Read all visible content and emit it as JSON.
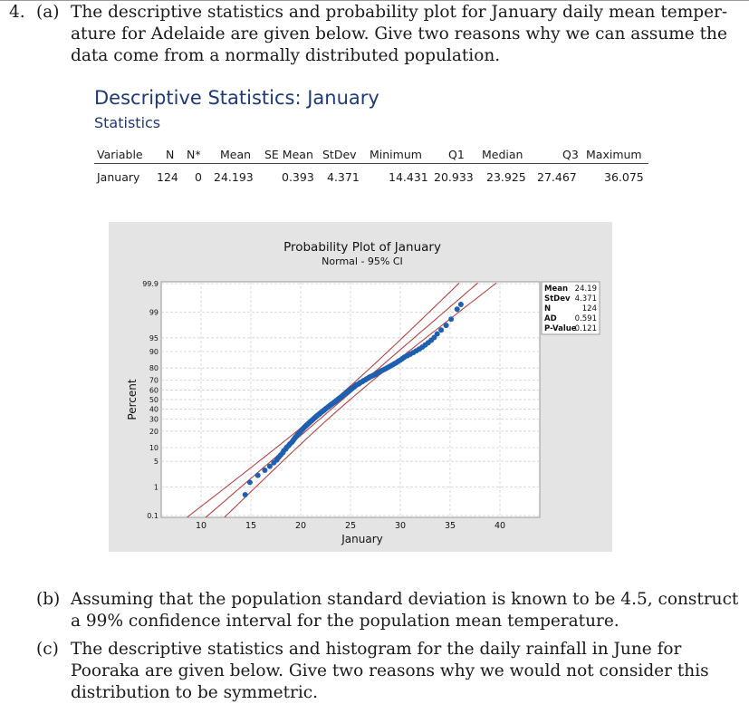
{
  "question_a": {
    "number": "4.",
    "part": "(a)",
    "lines": [
      "The descriptive statistics and probability plot for January daily mean temper-",
      "ature for Adelaide are given below. Give two reasons why we can assume the",
      "data come from a normally distributed population."
    ]
  },
  "stats": {
    "title": "Descriptive Statistics: January",
    "subtitle": "Statistics",
    "headers": [
      "Variable",
      "N",
      "N*",
      "Mean",
      "SE Mean",
      "StDev",
      "Minimum",
      "Q1",
      "Median",
      "Q3",
      "Maximum"
    ],
    "row": [
      "January",
      "124",
      "0",
      "24.193",
      "0.393",
      "4.371",
      "14.431",
      "20.933",
      "23.925",
      "27.467",
      "36.075"
    ]
  },
  "chart_data": {
    "type": "scatter",
    "title": "Probability Plot of January",
    "subtitle": "Normal - 95% CI",
    "xlabel": "January",
    "ylabel": "Percent",
    "xlim": [
      6,
      44
    ],
    "x_ticks": [
      10,
      15,
      20,
      25,
      30,
      35,
      40
    ],
    "y_ticks": [
      0.1,
      1,
      5,
      10,
      20,
      30,
      40,
      50,
      60,
      70,
      80,
      90,
      95,
      99,
      99.9
    ],
    "y_tick_labels": [
      "0.1",
      "1",
      "5",
      "10",
      "20",
      "30",
      "40",
      "50",
      "60",
      "70",
      "80",
      "90",
      "95",
      "99",
      "99.9"
    ],
    "ylim_percent": [
      0.1,
      99.9
    ],
    "scale": "normal probability",
    "grid": true,
    "fit_line": {
      "mean": 24.193,
      "stdev": 4.371
    },
    "ci_level": 0.95,
    "n": 124,
    "legend_position": "top-right",
    "legend": [
      {
        "label": "Mean",
        "value": "24.19"
      },
      {
        "label": "StDev",
        "value": "4.371"
      },
      {
        "label": "N",
        "value": "124"
      },
      {
        "label": "AD",
        "value": "0.591"
      },
      {
        "label": "P-Value",
        "value": "0.121"
      }
    ],
    "points": [
      [
        14.43,
        0.56
      ],
      [
        14.9,
        1.36
      ],
      [
        15.7,
        2.17
      ],
      [
        16.4,
        2.98
      ],
      [
        16.9,
        3.78
      ],
      [
        17.3,
        4.59
      ],
      [
        17.6,
        5.39
      ],
      [
        17.8,
        6.2
      ],
      [
        18.0,
        7.0
      ],
      [
        18.2,
        7.8
      ],
      [
        18.3,
        8.6
      ],
      [
        18.5,
        9.4
      ],
      [
        18.6,
        10.2
      ],
      [
        18.8,
        11.0
      ],
      [
        18.9,
        11.8
      ],
      [
        19.1,
        12.7
      ],
      [
        19.2,
        13.5
      ],
      [
        19.3,
        14.3
      ],
      [
        19.4,
        15.1
      ],
      [
        19.5,
        15.9
      ],
      [
        19.6,
        16.7
      ],
      [
        19.7,
        17.5
      ],
      [
        19.8,
        18.3
      ],
      [
        19.9,
        19.1
      ],
      [
        20.0,
        19.9
      ],
      [
        20.1,
        20.7
      ],
      [
        20.2,
        21.5
      ],
      [
        20.3,
        22.4
      ],
      [
        20.4,
        23.2
      ],
      [
        20.5,
        24.0
      ],
      [
        20.6,
        24.8
      ],
      [
        20.7,
        25.6
      ],
      [
        20.8,
        26.4
      ],
      [
        20.9,
        27.2
      ],
      [
        21.0,
        28.0
      ],
      [
        21.1,
        28.8
      ],
      [
        21.2,
        29.6
      ],
      [
        21.3,
        30.4
      ],
      [
        21.4,
        31.3
      ],
      [
        21.5,
        32.1
      ],
      [
        21.6,
        32.9
      ],
      [
        21.7,
        33.7
      ],
      [
        21.8,
        34.5
      ],
      [
        21.9,
        35.3
      ],
      [
        22.0,
        36.1
      ],
      [
        22.1,
        36.9
      ],
      [
        22.2,
        37.7
      ],
      [
        22.3,
        38.5
      ],
      [
        22.4,
        39.3
      ],
      [
        22.5,
        40.2
      ],
      [
        22.6,
        41.0
      ],
      [
        22.7,
        41.8
      ],
      [
        22.8,
        42.6
      ],
      [
        22.9,
        43.4
      ],
      [
        23.0,
        44.2
      ],
      [
        23.1,
        45.0
      ],
      [
        23.2,
        45.8
      ],
      [
        23.3,
        46.6
      ],
      [
        23.4,
        47.4
      ],
      [
        23.5,
        48.2
      ],
      [
        23.6,
        49.0
      ],
      [
        23.7,
        49.9
      ],
      [
        23.8,
        50.7
      ],
      [
        23.9,
        51.5
      ],
      [
        24.0,
        52.3
      ],
      [
        24.1,
        53.1
      ],
      [
        24.2,
        53.9
      ],
      [
        24.3,
        54.7
      ],
      [
        24.4,
        55.5
      ],
      [
        24.5,
        56.3
      ],
      [
        24.6,
        57.1
      ],
      [
        24.7,
        57.9
      ],
      [
        24.8,
        58.8
      ],
      [
        24.9,
        59.6
      ],
      [
        25.0,
        60.4
      ],
      [
        25.1,
        61.2
      ],
      [
        25.2,
        62.0
      ],
      [
        25.3,
        62.8
      ],
      [
        25.4,
        63.6
      ],
      [
        25.5,
        64.4
      ],
      [
        25.6,
        65.2
      ],
      [
        25.8,
        66.0
      ],
      [
        25.9,
        66.8
      ],
      [
        26.0,
        67.6
      ],
      [
        26.2,
        68.5
      ],
      [
        26.3,
        69.3
      ],
      [
        26.5,
        70.1
      ],
      [
        26.6,
        70.9
      ],
      [
        26.8,
        71.7
      ],
      [
        26.9,
        72.5
      ],
      [
        27.1,
        73.3
      ],
      [
        27.3,
        74.1
      ],
      [
        27.5,
        74.9
      ],
      [
        27.6,
        75.7
      ],
      [
        27.8,
        76.5
      ],
      [
        28.0,
        77.4
      ],
      [
        28.2,
        78.2
      ],
      [
        28.4,
        79.0
      ],
      [
        28.6,
        79.8
      ],
      [
        28.8,
        80.6
      ],
      [
        29.0,
        81.4
      ],
      [
        29.2,
        82.2
      ],
      [
        29.4,
        83.0
      ],
      [
        29.6,
        83.8
      ],
      [
        29.8,
        84.6
      ],
      [
        30.0,
        85.4
      ],
      [
        30.2,
        86.2
      ],
      [
        30.4,
        87.1
      ],
      [
        30.7,
        87.9
      ],
      [
        31.0,
        88.7
      ],
      [
        31.3,
        89.5
      ],
      [
        31.6,
        90.3
      ],
      [
        31.9,
        91.1
      ],
      [
        32.2,
        91.9
      ],
      [
        32.5,
        92.7
      ],
      [
        32.8,
        93.5
      ],
      [
        33.1,
        94.3
      ],
      [
        33.4,
        95.1
      ],
      [
        33.7,
        96.0
      ],
      [
        34.1,
        96.8
      ],
      [
        34.6,
        97.6
      ],
      [
        35.1,
        98.4
      ],
      [
        35.7,
        99.2
      ],
      [
        36.08,
        99.44
      ]
    ]
  },
  "question_b": {
    "part": "(b)",
    "lines": [
      "Assuming that the population standard deviation is known to be 4.5, construct",
      "a 99% confidence interval for the population mean temperature."
    ]
  },
  "question_c": {
    "part": "(c)",
    "lines": [
      "The descriptive statistics and histogram for the daily rainfall in June for",
      "Pooraka are given below. Give two reasons why we would not consider this",
      "distribution to be symmetric."
    ]
  }
}
